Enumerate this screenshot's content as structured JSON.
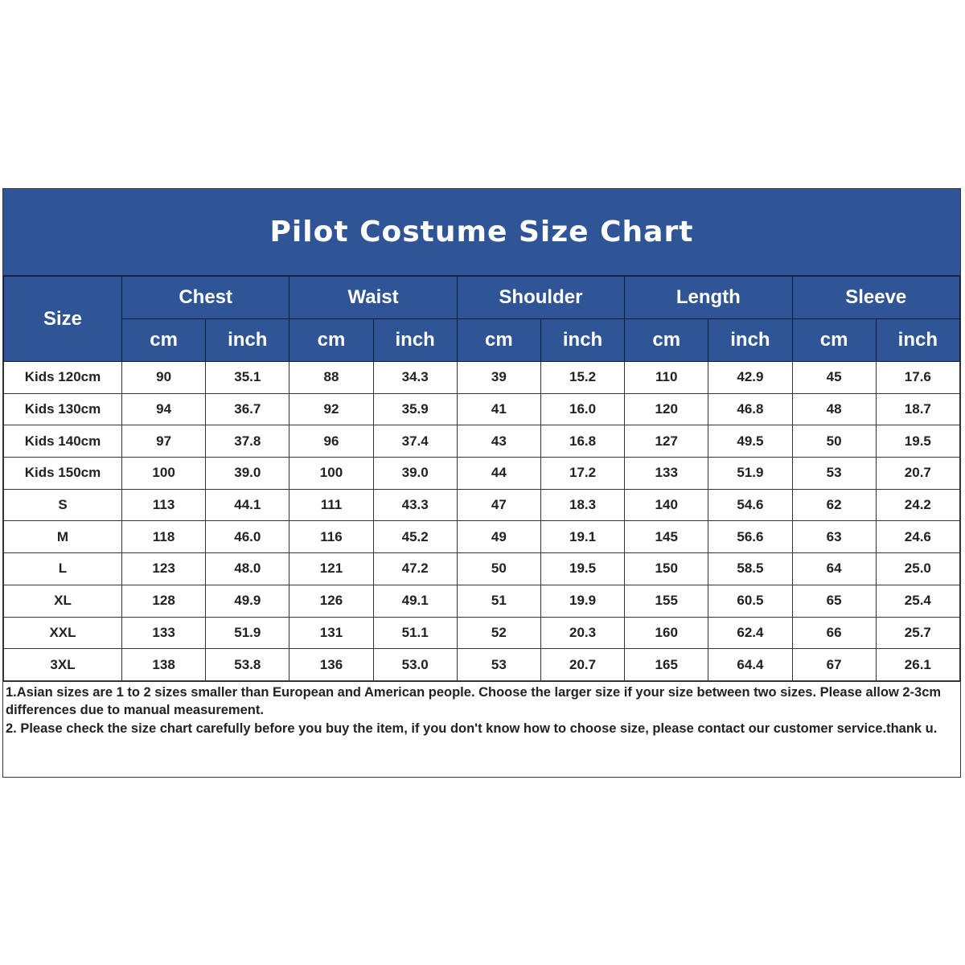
{
  "title": "Pilot Costume Size Chart",
  "header": {
    "size": "Size",
    "groups": [
      "Chest",
      "Waist",
      "Shoulder",
      "Length",
      "Sleeve"
    ],
    "units": [
      "cm",
      "inch"
    ]
  },
  "colors": {
    "header_bg": "#2f5597",
    "header_text": "#ffffff"
  },
  "rows": [
    [
      "Kids 120cm",
      "90",
      "35.1",
      "88",
      "34.3",
      "39",
      "15.2",
      "110",
      "42.9",
      "45",
      "17.6"
    ],
    [
      "Kids 130cm",
      "94",
      "36.7",
      "92",
      "35.9",
      "41",
      "16.0",
      "120",
      "46.8",
      "48",
      "18.7"
    ],
    [
      "Kids 140cm",
      "97",
      "37.8",
      "96",
      "37.4",
      "43",
      "16.8",
      "127",
      "49.5",
      "50",
      "19.5"
    ],
    [
      "Kids 150cm",
      "100",
      "39.0",
      "100",
      "39.0",
      "44",
      "17.2",
      "133",
      "51.9",
      "53",
      "20.7"
    ],
    [
      "S",
      "113",
      "44.1",
      "111",
      "43.3",
      "47",
      "18.3",
      "140",
      "54.6",
      "62",
      "24.2"
    ],
    [
      "M",
      "118",
      "46.0",
      "116",
      "45.2",
      "49",
      "19.1",
      "145",
      "56.6",
      "63",
      "24.6"
    ],
    [
      "L",
      "123",
      "48.0",
      "121",
      "47.2",
      "50",
      "19.5",
      "150",
      "58.5",
      "64",
      "25.0"
    ],
    [
      "XL",
      "128",
      "49.9",
      "126",
      "49.1",
      "51",
      "19.9",
      "155",
      "60.5",
      "65",
      "25.4"
    ],
    [
      "XXL",
      "133",
      "51.9",
      "131",
      "51.1",
      "52",
      "20.3",
      "160",
      "62.4",
      "66",
      "25.7"
    ],
    [
      "3XL",
      "138",
      "53.8",
      "136",
      "53.0",
      "53",
      "20.7",
      "165",
      "64.4",
      "67",
      "26.1"
    ]
  ],
  "notes": [
    "1.Asian sizes are 1 to 2 sizes smaller than European and American people. Choose the larger size if your size between two sizes. Please allow 2-3cm differences due to manual measurement.",
    "2. Please check the size chart carefully before you buy the item, if you don't know how to choose size, please contact our customer service.thank u."
  ]
}
